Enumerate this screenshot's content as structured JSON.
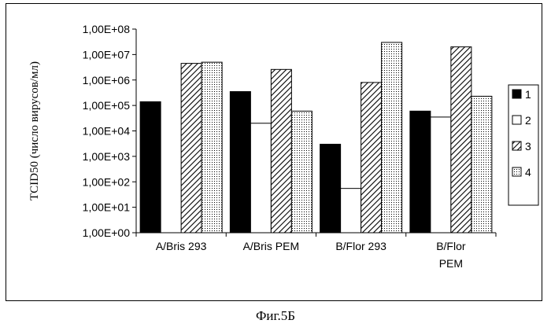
{
  "chart_data": {
    "type": "bar",
    "scale": "log10",
    "ylabel": "TCID50 (число вирусов/мл)",
    "xlabel": "",
    "ylim": [
      1,
      100000000
    ],
    "yticks": [
      "1,00E+00",
      "1,00E+01",
      "1,00E+02",
      "1,00E+03",
      "1,00E+04",
      "1,00E+05",
      "1,00E+06",
      "1,00E+07",
      "1,00E+08"
    ],
    "categories": [
      [
        "A/Bris  293"
      ],
      [
        "A/Bris PEM"
      ],
      [
        "B/Flor  293"
      ],
      [
        "B/Flor",
        "PEM"
      ]
    ],
    "series": [
      {
        "name": "1",
        "pattern": "solid",
        "values": [
          140000,
          350000,
          3000,
          60000
        ]
      },
      {
        "name": "2",
        "pattern": "white",
        "values": [
          1,
          20000,
          55,
          35000
        ]
      },
      {
        "name": "3",
        "pattern": "hatch",
        "values": [
          4500000,
          2600000,
          800000,
          20000000
        ]
      },
      {
        "name": "4",
        "pattern": "dots",
        "values": [
          5000000,
          60000,
          30000000,
          230000
        ]
      }
    ],
    "legend_position": "right",
    "grid": false
  },
  "caption": "Фиг.5Б"
}
